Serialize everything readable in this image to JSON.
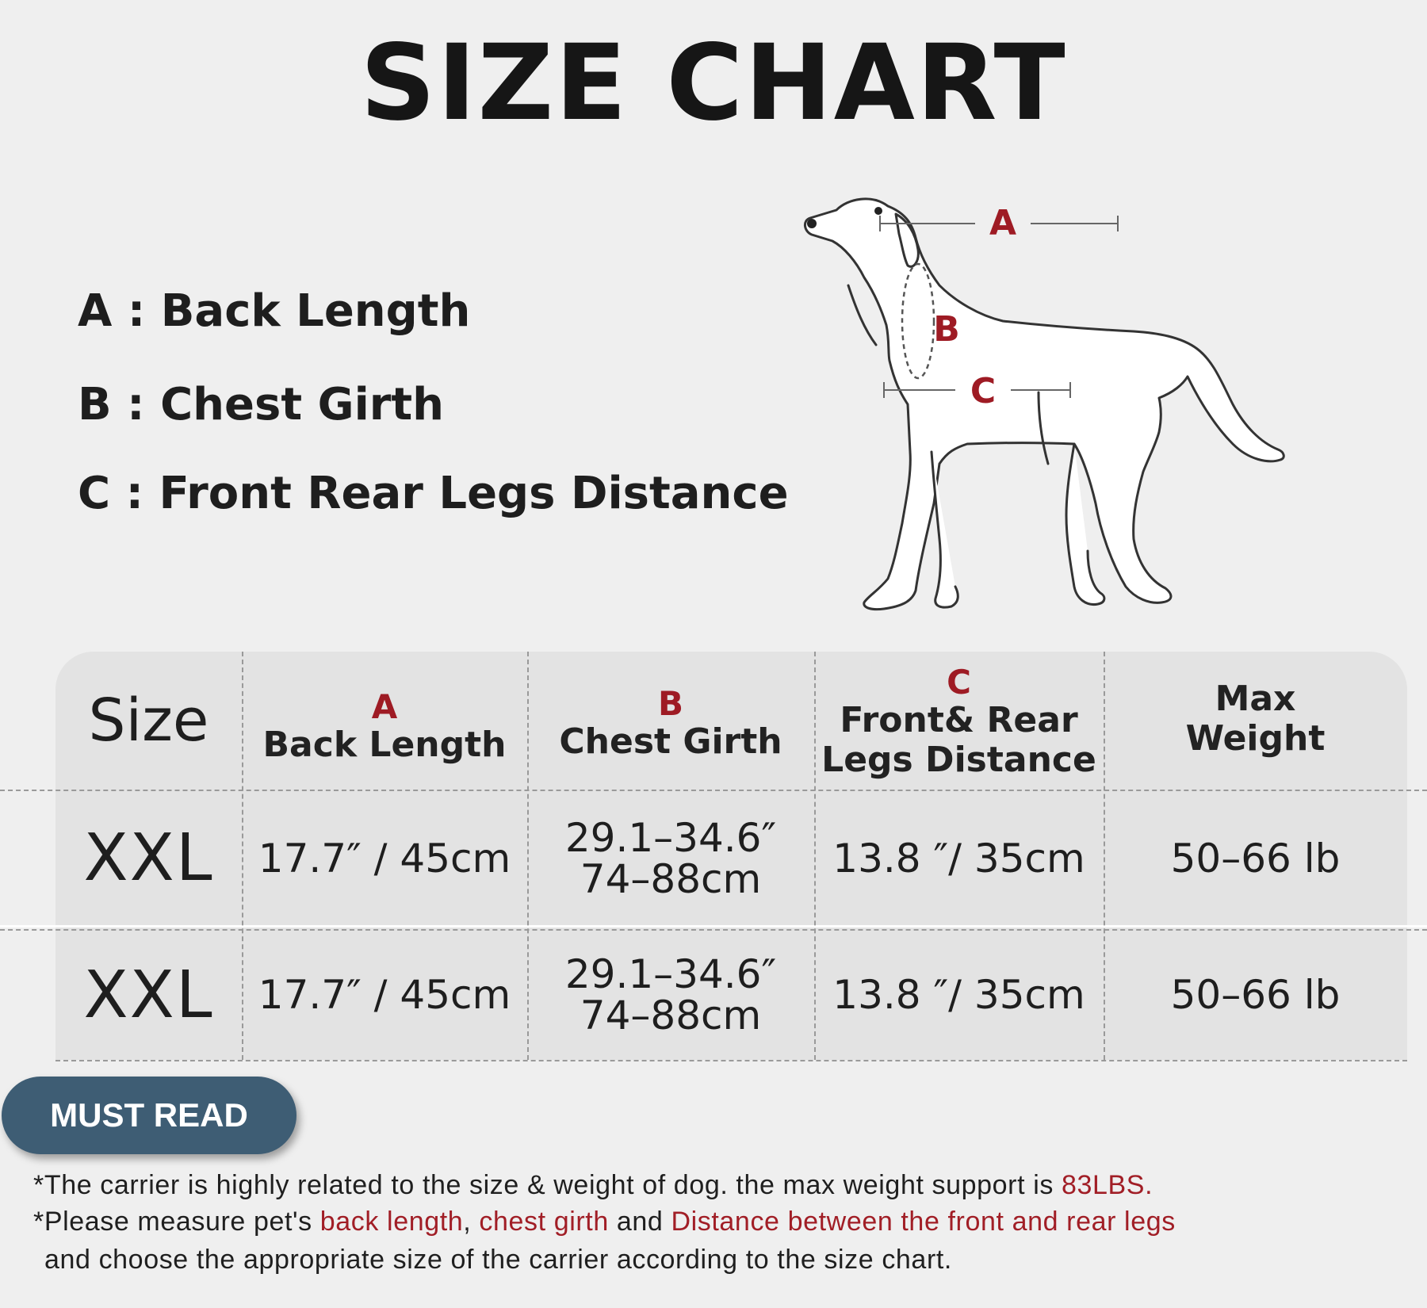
{
  "title": "SIZE CHART",
  "legend": {
    "a": "A : Back Length",
    "b": "B : Chest Girth",
    "c": "C : Front Rear Legs Distance"
  },
  "diagram": {
    "label_a": "A",
    "label_b": "B",
    "label_c": "C"
  },
  "table": {
    "headers": {
      "size": "Size",
      "a_letter": "A",
      "a_text": "Back Length",
      "b_letter": "B",
      "b_text": "Chest Girth",
      "c_letter": "C",
      "c_text_1": "Front& Rear",
      "c_text_2": "Legs Distance",
      "w_text_1": "Max",
      "w_text_2": "Weight"
    },
    "rows": [
      {
        "size": "XXL",
        "back_length": "17.7″ / 45cm",
        "chest_girth_in": "29.1–34.6″",
        "chest_girth_cm": "74–88cm",
        "legs_distance": "13.8 ″/ 35cm",
        "max_weight": "50–66 lb"
      },
      {
        "size": "XXL",
        "back_length": "17.7″ / 45cm",
        "chest_girth_in": "29.1–34.6″",
        "chest_girth_cm": "74–88cm",
        "legs_distance": "13.8 ″/ 35cm",
        "max_weight": "50–66 lb"
      }
    ]
  },
  "must_read": "MUST READ",
  "notes": {
    "line1_a": "*The carrier is highly related to the size & weight of dog. the max weight support is ",
    "line1_red": "83LBS.",
    "line2_a": "*Please measure pet's ",
    "line2_red1": "back length",
    "line2_b": ", ",
    "line2_red2": "chest girth",
    "line2_c": " and ",
    "line2_red3": "Distance between the front and rear legs",
    "line3": "and choose the appropriate size of the carrier according to the size chart."
  },
  "colors": {
    "accent_red": "#9e1b24",
    "badge_blue": "#3e5d74",
    "background": "#efefef",
    "table_bg": "#e3e3e3"
  }
}
